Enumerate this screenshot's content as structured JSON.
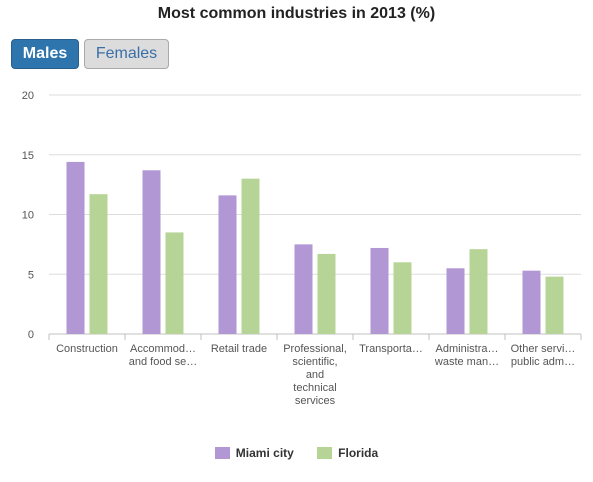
{
  "title": "Most common industries in 2013 (%)",
  "toggle": {
    "males_label": "Males",
    "females_label": "Females",
    "active": "Males"
  },
  "colors": {
    "miami": "#b197d3",
    "florida": "#b7d497",
    "active_button": "#2f75ad",
    "gridline": "#dddddd"
  },
  "chart_data": {
    "type": "bar",
    "title": "Most common industries in 2013 (%)",
    "categories": [
      [
        "Construction"
      ],
      [
        "Accommod…",
        "and food se…"
      ],
      [
        "Retail trade"
      ],
      [
        "Professional,",
        "scientific,",
        "and",
        "technical",
        "services"
      ],
      [
        "Transporta…"
      ],
      [
        "Administra…",
        "waste man…"
      ],
      [
        "Other servi…",
        "public adm…"
      ]
    ],
    "series": [
      {
        "name": "Miami city",
        "values": [
          14.4,
          13.7,
          11.6,
          7.5,
          7.2,
          5.5,
          5.3
        ]
      },
      {
        "name": "Florida",
        "values": [
          11.7,
          8.5,
          13.0,
          6.7,
          6.0,
          7.1,
          4.8
        ]
      }
    ],
    "ylim": [
      0,
      20
    ],
    "yticks": [
      "0",
      "5",
      "10",
      "15",
      "20"
    ],
    "grid": true,
    "legend_position": "bottom"
  }
}
